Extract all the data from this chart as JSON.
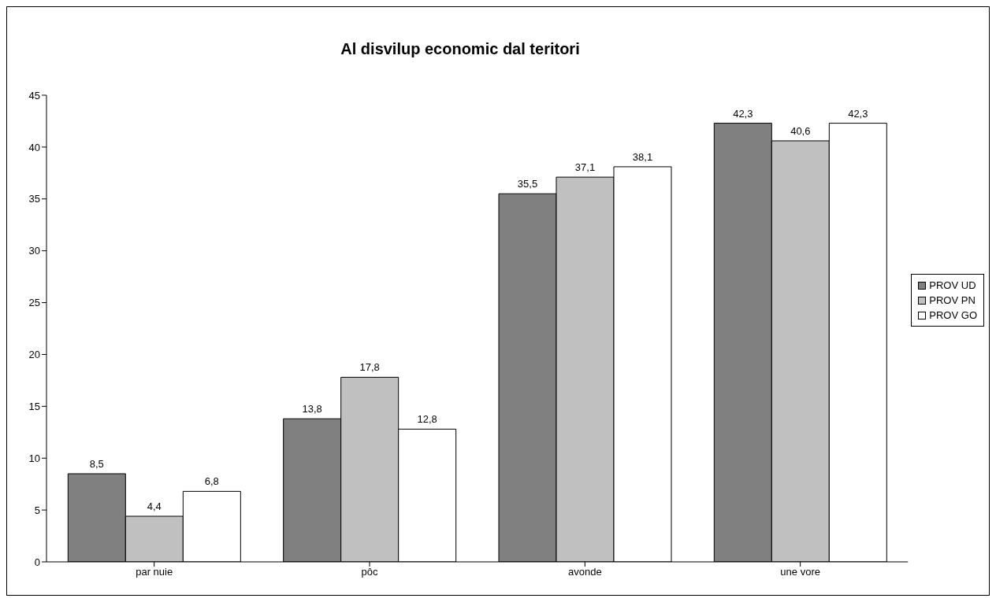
{
  "chart_data": {
    "type": "bar",
    "title": "Al disvilup economic dal teritori",
    "categories": [
      "par nuie",
      "pôc",
      "avonde",
      "une vore"
    ],
    "series": [
      {
        "name": "PROV UD",
        "color": "#808080",
        "values": [
          8.5,
          13.8,
          35.5,
          42.3
        ],
        "value_labels": [
          "8,5",
          "13,8",
          "35,5",
          "42,3"
        ]
      },
      {
        "name": "PROV PN",
        "color": "#c0c0c0",
        "values": [
          4.4,
          17.8,
          37.1,
          40.6
        ],
        "value_labels": [
          "4,4",
          "17,8",
          "37,1",
          "40,6"
        ]
      },
      {
        "name": "PROV GO",
        "color": "#ffffff",
        "values": [
          6.8,
          12.8,
          38.1,
          42.3
        ],
        "value_labels": [
          "6,8",
          "12,8",
          "38,1",
          "42,3"
        ]
      }
    ],
    "ylim": [
      0,
      45
    ],
    "yticks": [
      0,
      5,
      10,
      15,
      20,
      25,
      30,
      35,
      40,
      45
    ],
    "grid": false,
    "legend": "right"
  }
}
